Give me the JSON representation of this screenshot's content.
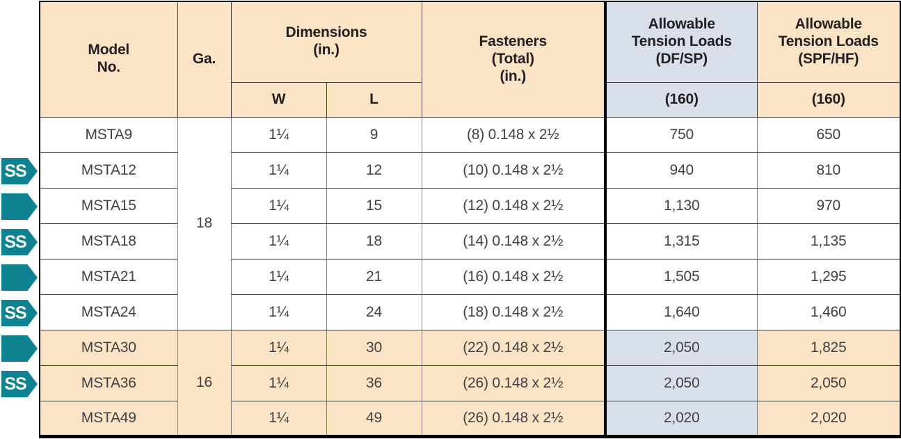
{
  "header": {
    "model_no": "Model\nNo.",
    "ga": "Ga.",
    "dimensions": "Dimensions\n(in.)",
    "dim_w": "W",
    "dim_l": "L",
    "fasteners": "Fasteners\n(Total)\n(in.)",
    "allowable_df_sp": "Allowable\nTension Loads\n(DF/SP)",
    "allowable_spf_hf": "Allowable\nTension Loads\n(SPF/HF)",
    "df_sp_duration": "(160)",
    "spf_hf_duration": "(160)"
  },
  "colors": {
    "header_tan": "#fbe3c5",
    "highlight_blue": "#d9e0e9",
    "badge_teal": "#0e8290",
    "text_dark": "#231f20",
    "text_data": "#414042"
  },
  "badges": [
    {
      "row": 2,
      "type": "ss",
      "label": "SS"
    },
    {
      "row": 3,
      "type": "arrow",
      "label": ""
    },
    {
      "row": 4,
      "type": "ss",
      "label": "SS"
    },
    {
      "row": 5,
      "type": "arrow",
      "label": ""
    },
    {
      "row": 6,
      "type": "ss",
      "label": "SS"
    },
    {
      "row": 7,
      "type": "arrow",
      "label": ""
    },
    {
      "row": 8,
      "type": "ss",
      "label": "SS"
    }
  ],
  "rows": [
    {
      "model": "MSTA9",
      "ga": "18",
      "ga_rowspan": 6,
      "w": "1¼",
      "l": "9",
      "fasteners": "(8) 0.148 x 2½",
      "df_sp": "750",
      "spf_hf": "650",
      "shaded": false
    },
    {
      "model": "MSTA12",
      "ga": null,
      "ga_rowspan": 0,
      "w": "1¼",
      "l": "12",
      "fasteners": "(10) 0.148 x 2½",
      "df_sp": "940",
      "spf_hf": "810",
      "shaded": false
    },
    {
      "model": "MSTA15",
      "ga": null,
      "ga_rowspan": 0,
      "w": "1¼",
      "l": "15",
      "fasteners": "(12) 0.148 x 2½",
      "df_sp": "1,130",
      "spf_hf": "970",
      "shaded": false
    },
    {
      "model": "MSTA18",
      "ga": null,
      "ga_rowspan": 0,
      "w": "1¼",
      "l": "18",
      "fasteners": "(14) 0.148 x 2½",
      "df_sp": "1,315",
      "spf_hf": "1,135",
      "shaded": false
    },
    {
      "model": "MSTA21",
      "ga": null,
      "ga_rowspan": 0,
      "w": "1¼",
      "l": "21",
      "fasteners": "(16) 0.148 x 2½",
      "df_sp": "1,505",
      "spf_hf": "1,295",
      "shaded": false
    },
    {
      "model": "MSTA24",
      "ga": null,
      "ga_rowspan": 0,
      "w": "1¼",
      "l": "24",
      "fasteners": "(18) 0.148 x 2½",
      "df_sp": "1,640",
      "spf_hf": "1,460",
      "shaded": false
    },
    {
      "model": "MSTA30",
      "ga": "16",
      "ga_rowspan": 3,
      "w": "1¼",
      "l": "30",
      "fasteners": "(22) 0.148 x 2½",
      "df_sp": "2,050",
      "spf_hf": "1,825",
      "shaded": true
    },
    {
      "model": "MSTA36",
      "ga": null,
      "ga_rowspan": 0,
      "w": "1¼",
      "l": "36",
      "fasteners": "(26) 0.148 x 2½",
      "df_sp": "2,050",
      "spf_hf": "2,050",
      "shaded": true
    },
    {
      "model": "MSTA49",
      "ga": null,
      "ga_rowspan": 0,
      "w": "1¼",
      "l": "49",
      "fasteners": "(26) 0.148 x 2½",
      "df_sp": "2,020",
      "spf_hf": "2,020",
      "shaded": true
    }
  ]
}
